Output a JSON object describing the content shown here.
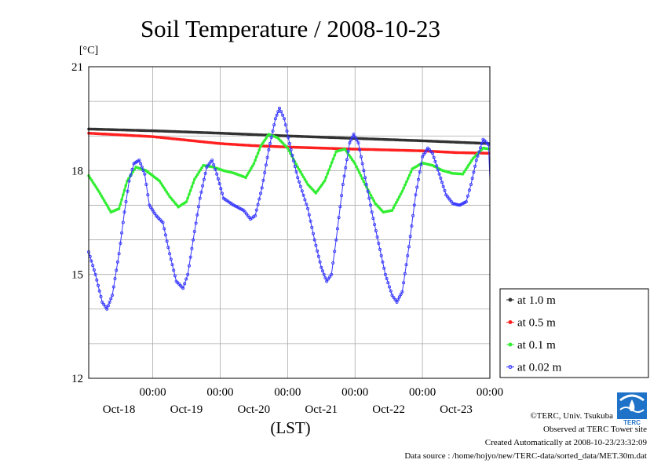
{
  "chart_data": {
    "type": "line",
    "title": "Soil Temperature / 2008-10-23",
    "ylabel": "[°C]",
    "xlabel": "(LST)",
    "ylim": [
      12,
      21
    ],
    "xlim": [
      -0.95,
      5.0
    ],
    "yticks": [
      {
        "label": "21",
        "value": 21
      },
      {
        "label": "18",
        "value": 18
      },
      {
        "label": "15",
        "value": 15
      },
      {
        "label": "12",
        "value": 12
      }
    ],
    "xticks": [
      {
        "time": "00:00",
        "date": "Oct-18",
        "value": 0
      },
      {
        "time": "00:00",
        "date": "Oct-19",
        "value": 1
      },
      {
        "time": "00:00",
        "date": "Oct-20",
        "value": 2
      },
      {
        "time": "00:00",
        "date": "Oct-21",
        "value": 3
      },
      {
        "time": "00:00",
        "date": "Oct-22",
        "value": 4
      },
      {
        "time": "00:00",
        "date": "Oct-23",
        "value": 5
      }
    ],
    "grid": true,
    "legend_position": "right",
    "series": [
      {
        "name": "at 1.0 m",
        "color": "#333333",
        "points": [
          [
            -0.95,
            19.2
          ],
          [
            0,
            19.15
          ],
          [
            1,
            19.08
          ],
          [
            2,
            19.0
          ],
          [
            3,
            18.93
          ],
          [
            4,
            18.86
          ],
          [
            5,
            18.78
          ]
        ]
      },
      {
        "name": "at 0.5 m",
        "color": "#ff2020",
        "points": [
          [
            -0.95,
            19.08
          ],
          [
            0,
            18.98
          ],
          [
            0.5,
            18.88
          ],
          [
            1,
            18.78
          ],
          [
            1.5,
            18.72
          ],
          [
            2,
            18.68
          ],
          [
            3,
            18.62
          ],
          [
            4,
            18.57
          ],
          [
            4.5,
            18.52
          ],
          [
            5,
            18.5
          ]
        ]
      },
      {
        "name": "at 0.1 m",
        "color": "#33ee33",
        "points": [
          [
            -0.95,
            17.85
          ],
          [
            -0.8,
            17.4
          ],
          [
            -0.62,
            16.8
          ],
          [
            -0.5,
            16.9
          ],
          [
            -0.38,
            17.7
          ],
          [
            -0.25,
            18.1
          ],
          [
            -0.1,
            18.0
          ],
          [
            0.1,
            17.7
          ],
          [
            0.25,
            17.25
          ],
          [
            0.38,
            16.95
          ],
          [
            0.5,
            17.1
          ],
          [
            0.62,
            17.75
          ],
          [
            0.75,
            18.15
          ],
          [
            0.9,
            18.1
          ],
          [
            1.05,
            18.0
          ],
          [
            1.2,
            17.93
          ],
          [
            1.38,
            17.8
          ],
          [
            1.5,
            18.2
          ],
          [
            1.6,
            18.7
          ],
          [
            1.72,
            19.05
          ],
          [
            1.85,
            18.95
          ],
          [
            2.0,
            18.65
          ],
          [
            2.15,
            18.1
          ],
          [
            2.3,
            17.6
          ],
          [
            2.42,
            17.35
          ],
          [
            2.55,
            17.7
          ],
          [
            2.72,
            18.55
          ],
          [
            2.85,
            18.62
          ],
          [
            3.0,
            18.2
          ],
          [
            3.15,
            17.6
          ],
          [
            3.3,
            17.05
          ],
          [
            3.42,
            16.8
          ],
          [
            3.55,
            16.85
          ],
          [
            3.7,
            17.4
          ],
          [
            3.85,
            18.05
          ],
          [
            4.0,
            18.22
          ],
          [
            4.15,
            18.15
          ],
          [
            4.3,
            18.0
          ],
          [
            4.45,
            17.92
          ],
          [
            4.6,
            17.9
          ],
          [
            4.75,
            18.35
          ],
          [
            4.9,
            18.65
          ],
          [
            5.05,
            18.68
          ],
          [
            5.0,
            18.62
          ]
        ]
      },
      {
        "name": "at 0.02 m",
        "color": "#3333ff",
        "points": [
          [
            -0.95,
            15.65
          ],
          [
            -0.85,
            15.0
          ],
          [
            -0.75,
            14.2
          ],
          [
            -0.68,
            14.0
          ],
          [
            -0.6,
            14.4
          ],
          [
            -0.5,
            15.6
          ],
          [
            -0.42,
            16.8
          ],
          [
            -0.35,
            17.7
          ],
          [
            -0.28,
            18.2
          ],
          [
            -0.2,
            18.3
          ],
          [
            -0.12,
            17.9
          ],
          [
            -0.05,
            17.0
          ],
          [
            0.05,
            16.7
          ],
          [
            0.15,
            16.5
          ],
          [
            0.25,
            15.6
          ],
          [
            0.35,
            14.8
          ],
          [
            0.45,
            14.6
          ],
          [
            0.52,
            15.0
          ],
          [
            0.6,
            16.0
          ],
          [
            0.7,
            17.2
          ],
          [
            0.8,
            18.1
          ],
          [
            0.88,
            18.3
          ],
          [
            0.95,
            17.9
          ],
          [
            1.05,
            17.2
          ],
          [
            1.2,
            17.0
          ],
          [
            1.35,
            16.85
          ],
          [
            1.45,
            16.6
          ],
          [
            1.52,
            16.7
          ],
          [
            1.62,
            17.5
          ],
          [
            1.72,
            18.6
          ],
          [
            1.82,
            19.5
          ],
          [
            1.88,
            19.8
          ],
          [
            1.95,
            19.5
          ],
          [
            2.05,
            18.6
          ],
          [
            2.15,
            17.8
          ],
          [
            2.3,
            16.9
          ],
          [
            2.4,
            16.0
          ],
          [
            2.5,
            15.2
          ],
          [
            2.58,
            14.8
          ],
          [
            2.65,
            15.0
          ],
          [
            2.72,
            16.0
          ],
          [
            2.82,
            17.6
          ],
          [
            2.92,
            18.8
          ],
          [
            2.98,
            19.05
          ],
          [
            3.05,
            18.8
          ],
          [
            3.15,
            17.8
          ],
          [
            3.25,
            16.8
          ],
          [
            3.35,
            15.9
          ],
          [
            3.45,
            15.0
          ],
          [
            3.55,
            14.4
          ],
          [
            3.62,
            14.2
          ],
          [
            3.7,
            14.5
          ],
          [
            3.8,
            15.8
          ],
          [
            3.9,
            17.3
          ],
          [
            4.0,
            18.4
          ],
          [
            4.08,
            18.65
          ],
          [
            4.15,
            18.5
          ],
          [
            4.25,
            17.9
          ],
          [
            4.35,
            17.3
          ],
          [
            4.45,
            17.05
          ],
          [
            4.55,
            17.0
          ],
          [
            4.65,
            17.1
          ],
          [
            4.72,
            17.6
          ],
          [
            4.8,
            18.3
          ],
          [
            4.9,
            18.9
          ],
          [
            4.98,
            18.75
          ],
          [
            5.05,
            18.3
          ],
          [
            5.12,
            17.7
          ],
          [
            5.0,
            17.75
          ]
        ]
      }
    ]
  },
  "footer": {
    "copyright": "©TERC, Univ. Tsukuba",
    "observed": "Observed at TERC Tower site",
    "created": "Created Automatically at 2008-10-23/23:32:09",
    "source": "Data source : /home/hojyo/new/TERC-data/sorted_data/MET.30m.dat",
    "logo_text": "TERC"
  }
}
